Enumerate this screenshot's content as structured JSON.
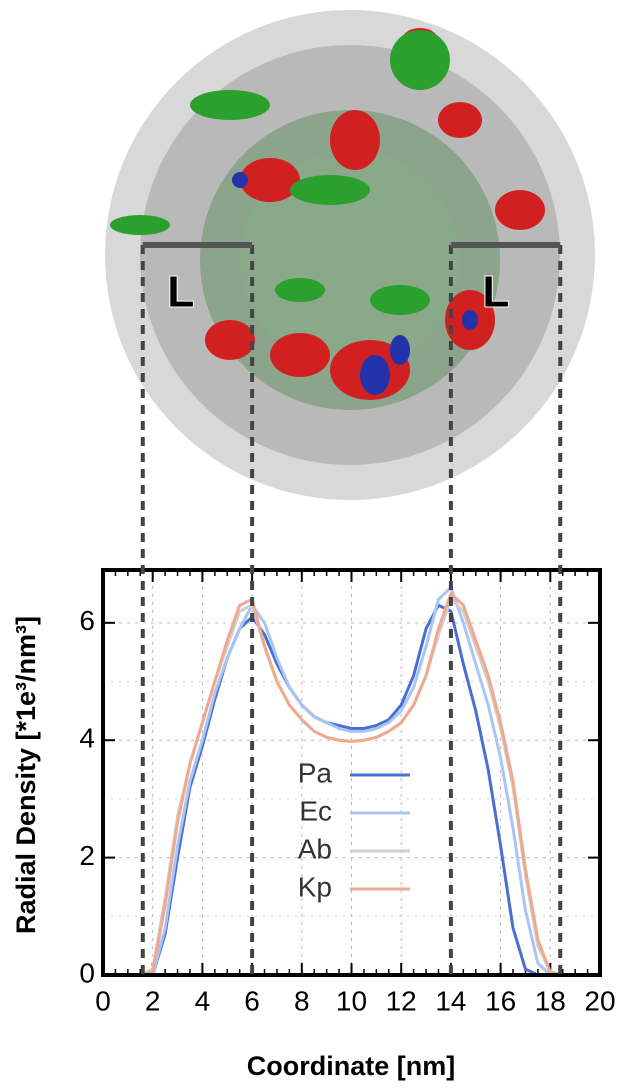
{
  "chart_data": {
    "type": "line",
    "xlabel": "Coordinate [nm]",
    "ylabel": "Radial Density [*1e³/nm³]",
    "x": [
      1.5,
      2,
      2.5,
      3,
      3.5,
      4,
      4.5,
      5,
      5.5,
      6,
      6.5,
      7,
      7.5,
      8,
      8.5,
      9,
      9.5,
      10,
      10.5,
      11,
      11.5,
      12,
      12.5,
      13,
      13.5,
      14,
      14.5,
      15,
      15.5,
      16,
      16.5,
      17,
      17.5,
      18,
      18.5
    ],
    "series": [
      {
        "name": "Pa",
        "color": "#4a6fd4",
        "values": [
          0,
          0,
          0.7,
          2.0,
          3.2,
          3.9,
          4.7,
          5.4,
          5.9,
          6.1,
          5.8,
          5.3,
          4.9,
          4.6,
          4.4,
          4.3,
          4.25,
          4.2,
          4.2,
          4.25,
          4.35,
          4.6,
          5.1,
          5.9,
          6.3,
          6.2,
          5.3,
          4.5,
          3.5,
          2.2,
          0.8,
          0.1,
          0,
          0,
          0
        ]
      },
      {
        "name": "Ec",
        "color": "#a9c4f5",
        "values": [
          0,
          0,
          0.8,
          2.2,
          3.3,
          4.0,
          4.8,
          5.4,
          5.9,
          6.3,
          6.0,
          5.4,
          4.9,
          4.6,
          4.4,
          4.3,
          4.2,
          4.15,
          4.15,
          4.2,
          4.3,
          4.5,
          4.9,
          5.6,
          6.4,
          6.6,
          6.0,
          5.3,
          4.6,
          3.7,
          2.5,
          1.1,
          0.2,
          0,
          0
        ]
      },
      {
        "name": "Ab",
        "color": "#cfcfcf",
        "values": [
          0,
          0.1,
          1.3,
          2.7,
          3.6,
          4.3,
          5.0,
          5.6,
          6.2,
          6.3,
          5.6,
          5.0,
          4.6,
          4.35,
          4.15,
          4.05,
          4.0,
          3.98,
          4.0,
          4.05,
          4.15,
          4.3,
          4.6,
          5.1,
          5.8,
          6.4,
          6.2,
          5.6,
          5.0,
          4.2,
          3.2,
          1.7,
          0.5,
          0.05,
          0
        ]
      },
      {
        "name": "Kp",
        "color": "#f0a88e",
        "values": [
          0,
          0.05,
          1.2,
          2.6,
          3.6,
          4.3,
          5.0,
          5.7,
          6.3,
          6.4,
          5.6,
          5.0,
          4.6,
          4.35,
          4.15,
          4.05,
          4.0,
          3.98,
          4.0,
          4.05,
          4.15,
          4.3,
          4.6,
          5.1,
          5.9,
          6.5,
          6.3,
          5.7,
          5.1,
          4.3,
          3.3,
          1.8,
          0.6,
          0.05,
          0
        ]
      }
    ],
    "xlim": [
      0,
      20
    ],
    "xticks": [
      0,
      2,
      4,
      6,
      8,
      10,
      12,
      14,
      16,
      18,
      20
    ],
    "ylim": [
      0,
      6.9
    ],
    "yticks": [
      0,
      2,
      4,
      6
    ],
    "grid": true,
    "legend": "center",
    "vlines": [
      1.6,
      6,
      14,
      18.4
    ],
    "annotations": [
      "L",
      "L"
    ]
  }
}
